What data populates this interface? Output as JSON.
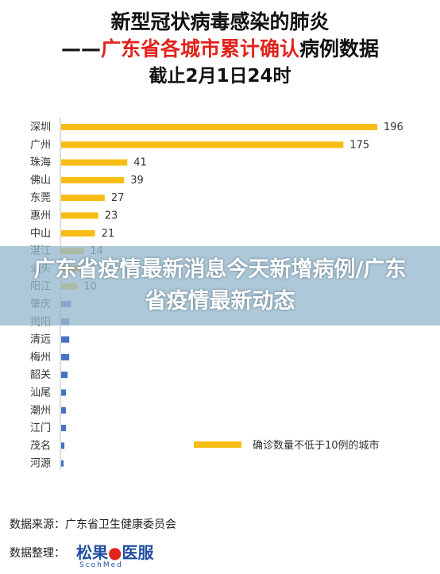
{
  "title": {
    "line1": "新型冠状病毒感染的肺炎",
    "line2_prefix": "——",
    "line2_red": "广东省各城市累计确认",
    "line2_suffix": "病例数据",
    "line3": "截止2月1日24时"
  },
  "chart_data": {
    "type": "bar",
    "orientation": "horizontal",
    "categories": [
      "深圳",
      "广州",
      "珠海",
      "佛山",
      "东莞",
      "惠州",
      "中山",
      "湛江",
      "汕头",
      "阳江",
      "肇庆",
      "揭阳",
      "清远",
      "梅州",
      "韶关",
      "汕尾",
      "潮州",
      "江门",
      "茂名",
      "河源"
    ],
    "values": [
      196,
      175,
      41,
      39,
      27,
      23,
      21,
      14,
      12,
      10,
      6,
      5,
      5,
      5,
      4,
      3,
      3,
      3,
      2,
      1
    ],
    "labels_shown": [
      196,
      175,
      41,
      39,
      27,
      23,
      21,
      14,
      null,
      10,
      null,
      null,
      null,
      null,
      null,
      null,
      null,
      null,
      null,
      null
    ],
    "threshold": 10,
    "colors": {
      "above": "#f7bd14",
      "below": "#4472c4"
    },
    "legend": {
      "label": "确诊数量不低于10例的城市",
      "placement": "bottom-right"
    }
  },
  "banner": {
    "text": "广东省疫情最新消息今天新增病例/广东省疫情最新动态"
  },
  "footer": {
    "source_label": "数据来源：",
    "source_value": "广东省卫生健康委员会",
    "arranger_label": "数据整理：",
    "logo_text_a": "松果",
    "logo_text_b": "医服",
    "logo_sub": "ScohMed"
  }
}
